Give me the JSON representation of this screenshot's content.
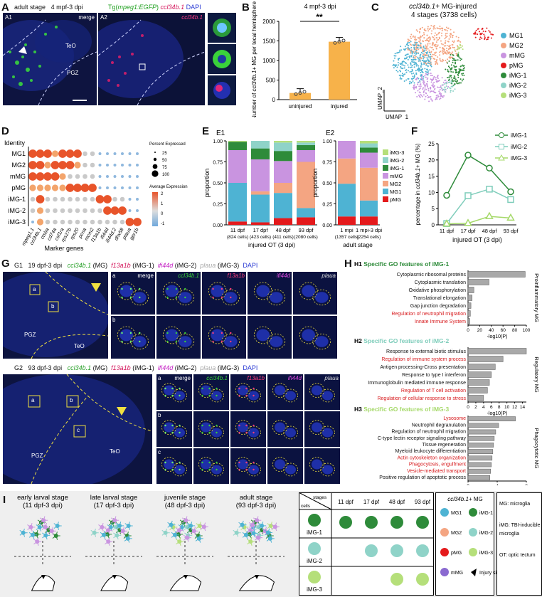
{
  "panelA": {
    "letter": "A",
    "stage": "adult stage",
    "dpi": "4 mpf-3 dpi",
    "marker1_prefix": "Tg(",
    "marker1_gene": "mpeg1:EGFP",
    "marker1_suffix": ")",
    "marker2": "ccl34b.1",
    "marker3": "DAPI",
    "sub1": "A1",
    "sub2": "A2",
    "merge": "merge",
    "teo": "TeO",
    "pgz": "PGZ",
    "a2_label": "ccl34b.1"
  },
  "panelB": {
    "letter": "B",
    "title": "4 mpf-3 dpi",
    "sig": "**",
    "ylabel_prefix": "Number of ",
    "ylabel_gene": "ccl34b.1",
    "ylabel_suffix": "+ MG per tecal hemisphere",
    "chart_data": {
      "type": "bar",
      "categories": [
        "uninjured",
        "injured"
      ],
      "values": [
        170,
        1480
      ],
      "ylim": [
        0,
        2000
      ],
      "yticks": [
        0,
        500,
        1000,
        1500,
        2000
      ],
      "colors": [
        "#f7b24a",
        "#f7b24a"
      ]
    }
  },
  "panelC": {
    "letter": "C",
    "title_gene": "ccl34b.1",
    "title_rest": "+ MG-injured",
    "subtitle": "4 stages (3738 cells)",
    "xlabel": "UMAP_1",
    "ylabel": "UMAP_2",
    "legend": [
      {
        "name": "MG1",
        "color": "#4eb3d3"
      },
      {
        "name": "MG2",
        "color": "#f4a582"
      },
      {
        "name": "mMG",
        "color": "#c994e0"
      },
      {
        "name": "pMG",
        "color": "#e41a1c"
      },
      {
        "name": "iMG-1",
        "color": "#2e8b3a"
      },
      {
        "name": "iMG-2",
        "color": "#8fd3c8"
      },
      {
        "name": "iMG-3",
        "color": "#b5df7a"
      }
    ]
  },
  "panelD": {
    "letter": "D",
    "identity_label": "Identity",
    "xlabel": "Marker genes",
    "rows": [
      "MG1",
      "MG2",
      "mMG",
      "pMG",
      "iMG-1",
      "iMG-2",
      "iMG-3"
    ],
    "genes": [
      "mpeg1.1",
      "ccl34b.1",
      "ctsba",
      "cd74a",
      "csf1ra",
      "rps27b",
      "rps20",
      "pcna",
      "mcm2",
      "f13a1b",
      "ifi44d",
      "ifi44d.2",
      "dhx58",
      "plaua",
      "gpr1b"
    ],
    "legend_pct_title": "Percent Expressed",
    "legend_pct": [
      "25",
      "50",
      "75",
      "100"
    ],
    "legend_avg_title": "Average Expression",
    "legend_avg": [
      "2",
      "1",
      "0",
      "-1"
    ]
  },
  "panelE": {
    "letter": "E",
    "e1": "E1",
    "e2": "E2",
    "ylabel": "proportion",
    "e1_xlabel": "injured OT (3 dpi)",
    "e2_xlabel": "adult stage",
    "yticks": [
      "0.00",
      "0.25",
      "0.50",
      "0.75",
      "1.00"
    ],
    "legend": [
      {
        "name": "iMG-3",
        "color": "#b5df7a"
      },
      {
        "name": "iMG-2",
        "color": "#8fd3c8"
      },
      {
        "name": "iMG-1",
        "color": "#2e8b3a"
      },
      {
        "name": "mMG",
        "color": "#c994e0"
      },
      {
        "name": "MG2",
        "color": "#f4a582"
      },
      {
        "name": "MG1",
        "color": "#4eb3d3"
      },
      {
        "name": "pMG",
        "color": "#e41a1c"
      }
    ],
    "chart_data": [
      {
        "type": "bar",
        "stacked": true,
        "categories": [
          "11 dpf",
          "17 dpf",
          "48 dpf",
          "93 dpf"
        ],
        "sublabels": [
          "(824 cells)",
          "(423 cells)",
          "(411 cells)",
          "(2080 cells)"
        ],
        "series": [
          {
            "name": "pMG",
            "values": [
              0.04,
              0.03,
              0.08,
              0.09
            ]
          },
          {
            "name": "MG1",
            "values": [
              0.46,
              0.33,
              0.3,
              0.11
            ]
          },
          {
            "name": "MG2",
            "values": [
              0.0,
              0.04,
              0.12,
              0.55
            ]
          },
          {
            "name": "mMG",
            "values": [
              0.39,
              0.38,
              0.26,
              0.14
            ]
          },
          {
            "name": "iMG-1",
            "values": [
              0.1,
              0.13,
              0.12,
              0.06
            ]
          },
          {
            "name": "iMG-2",
            "values": [
              0.0,
              0.09,
              0.1,
              0.03
            ]
          },
          {
            "name": "iMG-3",
            "values": [
              0.01,
              0.0,
              0.02,
              0.02
            ]
          }
        ]
      },
      {
        "type": "bar",
        "stacked": true,
        "categories": [
          "1 mpi",
          "1 mpi-3 dpi"
        ],
        "sublabels": [
          "(1357 cells)",
          "(2254 cells)"
        ],
        "series": [
          {
            "name": "pMG",
            "values": [
              0.1,
              0.1
            ]
          },
          {
            "name": "MG1",
            "values": [
              0.39,
              0.19
            ]
          },
          {
            "name": "MG2",
            "values": [
              0.3,
              0.39
            ]
          },
          {
            "name": "mMG",
            "values": [
              0.21,
              0.18
            ]
          },
          {
            "name": "iMG-1",
            "values": [
              0.0,
              0.06
            ]
          },
          {
            "name": "iMG-2",
            "values": [
              0.0,
              0.05
            ]
          },
          {
            "name": "iMG-3",
            "values": [
              0.0,
              0.03
            ]
          }
        ]
      }
    ]
  },
  "panelF": {
    "letter": "F",
    "ylabel_prefix": "percentage in ",
    "ylabel_gene": "ccl34b.1",
    "ylabel_suffix": "+ MG (%)",
    "xlabel": "injured OT (3 dpi)",
    "chart_data": {
      "type": "line",
      "categories": [
        "11 dpf",
        "17 dpf",
        "48 dpf",
        "93 dpf"
      ],
      "ylim": [
        0,
        25
      ],
      "yticks": [
        0,
        5,
        10,
        15,
        20,
        25
      ],
      "series": [
        {
          "name": "iMG-1",
          "values": [
            9.1,
            21.5,
            17.5,
            10.2
          ],
          "color": "#2e8b3a",
          "marker": "circle"
        },
        {
          "name": "iMG-2",
          "values": [
            0.4,
            9.0,
            11.0,
            7.8
          ],
          "color": "#7fcdbb",
          "marker": "square"
        },
        {
          "name": "iMG-3",
          "values": [
            0.3,
            0.5,
            2.6,
            2.1
          ],
          "color": "#a6d96a",
          "marker": "triangle"
        }
      ]
    }
  },
  "panelG": {
    "letter": "G",
    "g1": "G1",
    "g2": "G2",
    "g1_stage": "19 dpf-3 dpi",
    "g2_stage": "93 dpf-3 dpi",
    "m1": "ccl34b.1",
    "m1_tag": "(MG)",
    "m2": "f13a1b",
    "m2_tag": "(iMG-1)",
    "m3": "ifi44d",
    "m3_tag": "(iMG-2)",
    "m4": "plaua",
    "m4_tag": "(iMG-3)",
    "dapi": "DAPI",
    "merge": "merge",
    "teo": "TeO",
    "pgz": "PGZ",
    "ch_m1": "ccl34b.1",
    "ch_m2": "f13a1b",
    "ch_m3": "ifi44d",
    "ch_m4": "plaua",
    "roi_a": "a",
    "roi_b": "b",
    "roi_c": "c"
  },
  "panelH": {
    "letter": "H",
    "h1_label": "H1",
    "h1_title": "Specific GO features of iMG-1",
    "h1_side": "Proinflammatory MG",
    "h2_label": "H2",
    "h2_title": "Specific GO features of iMG-2",
    "h2_side": "Regulatory MG",
    "h3_label": "H3",
    "h3_title": "Specific GO features of iMG-3",
    "h3_side": "Phagocytotic MG",
    "xlabel": "-log10(P)",
    "chart_data": [
      {
        "type": "bar",
        "orientation": "horizontal",
        "categories": [
          "Cytoplasmic ribosomal proteins",
          "Cytoplasmic translation",
          "Oxidative phosphorylation",
          "Translational elongation",
          "Gap junction degradation",
          "Regulation of neutrophil migration",
          "Innate Immune System"
        ],
        "values": [
          98,
          36,
          10,
          7,
          5,
          4,
          3
        ],
        "highlight": [
          false,
          false,
          false,
          false,
          false,
          true,
          true
        ],
        "xlim": [
          0,
          100
        ],
        "xticks": [
          0,
          20,
          40,
          60,
          80,
          100
        ]
      },
      {
        "type": "bar",
        "orientation": "horizontal",
        "categories": [
          "Response to external biotic stimulus",
          "Regulation of immune system process",
          "Antigen processing-Cross presentation",
          "Response to type I interferon",
          "Immunoglobulin mediated immune response",
          "Regulation of T cell activation",
          "Regulation of cellular response to stress"
        ],
        "values": [
          15,
          9,
          7,
          6,
          5.5,
          5,
          4
        ],
        "highlight": [
          false,
          true,
          false,
          false,
          false,
          true,
          true
        ],
        "xlim": [
          0,
          15
        ],
        "xticks": [
          0,
          2,
          4,
          6,
          8,
          10,
          12,
          14
        ]
      },
      {
        "type": "bar",
        "orientation": "horizontal",
        "categories": [
          "Lysosome",
          "Neutrophil degranulation",
          "Regulation of neutrophil migration",
          "C-type lectin receptor signaling pathway",
          "Tissue regeneration",
          "Myeloid leukocyte differentiation",
          "Actin cytoskeleton organization",
          "Phagocytosis, engulfment",
          "Vesicle-mediated transport",
          "Positive regulation of apoptotic process"
        ],
        "values": [
          6.5,
          4.2,
          3.8,
          3.6,
          3.5,
          3.4,
          3.3,
          3.2,
          3.1,
          3.0
        ],
        "highlight": [
          true,
          false,
          false,
          false,
          false,
          false,
          true,
          true,
          true,
          false
        ],
        "xlim": [
          0,
          8
        ],
        "xticks": [
          0,
          4,
          8
        ]
      }
    ]
  },
  "panelI": {
    "letter": "I",
    "stages": [
      {
        "name": "early larval stage",
        "sub": "(11 dpf-3 dpi)"
      },
      {
        "name": "late larval stage",
        "sub": "(17 dpf-3 dpi)"
      },
      {
        "name": "juvenile stage",
        "sub": "(48 dpf-3 dpi)"
      },
      {
        "name": "adult stage",
        "sub": "(93 dpf-3 dpi)"
      }
    ],
    "table_corner_top": "stages",
    "table_corner_bottom": "cells",
    "table_cols": [
      "11 dpf",
      "17 dpf",
      "48 dpf",
      "93 dpf"
    ],
    "table_rows": [
      "iMG-1",
      "iMG-2",
      "iMG-3"
    ],
    "presence": [
      [
        1,
        1,
        1,
        1
      ],
      [
        0,
        1,
        1,
        1
      ],
      [
        0,
        0,
        1,
        1
      ]
    ],
    "legend_title_gene": "ccl34b.1",
    "legend_title_rest": "+ MG",
    "legend_items": [
      "MG1",
      "iMG-1",
      "MG2",
      "iMG-2",
      "pMG",
      "iMG-3",
      "mMG",
      "Injury site"
    ],
    "abbr": [
      "MG: microglia",
      "iMG: TBI-inducible microglia",
      "OT: optic tectum"
    ]
  }
}
